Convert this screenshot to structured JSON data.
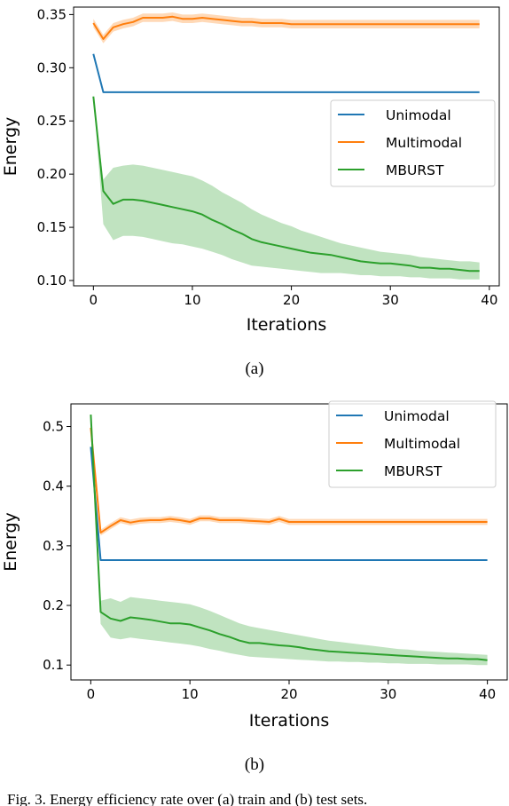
{
  "figure": {
    "caption": "Fig. 3.  Energy efficiency rate over (a) train and (b) test sets."
  },
  "chart_data": [
    {
      "type": "line",
      "subcaption": "(a)",
      "xlabel": "Iterations",
      "ylabel": "Energy",
      "xlim": [
        -2,
        41
      ],
      "ylim": [
        0.095,
        0.357
      ],
      "xticks": [
        0,
        10,
        20,
        30,
        40
      ],
      "yticks": [
        0.1,
        0.15,
        0.2,
        0.25,
        0.3,
        0.35
      ],
      "ytick_decimals": 2,
      "grid": false,
      "legend_position": "center-right",
      "series": [
        {
          "name": "Unimodal",
          "color": "#1f77b4",
          "x": [
            0,
            1,
            39
          ],
          "y": [
            0.313,
            0.277,
            0.277
          ]
        },
        {
          "name": "Multimodal",
          "color": "#ff7f0e",
          "x": [
            0,
            1,
            2,
            3,
            4,
            5,
            6,
            7,
            8,
            9,
            10,
            11,
            12,
            13,
            14,
            15,
            16,
            17,
            18,
            19,
            20,
            21,
            22,
            23,
            24,
            25,
            26,
            27,
            28,
            29,
            30,
            31,
            32,
            33,
            34,
            35,
            36,
            37,
            38,
            39
          ],
          "y": [
            0.342,
            0.327,
            0.338,
            0.341,
            0.343,
            0.347,
            0.347,
            0.347,
            0.348,
            0.346,
            0.346,
            0.347,
            0.346,
            0.345,
            0.344,
            0.343,
            0.343,
            0.342,
            0.342,
            0.342,
            0.341,
            0.341,
            0.341,
            0.341,
            0.341,
            0.341,
            0.341,
            0.341,
            0.341,
            0.341,
            0.341,
            0.341,
            0.341,
            0.341,
            0.341,
            0.341,
            0.341,
            0.341,
            0.341,
            0.341
          ],
          "band": [
            0.004,
            0.004,
            0.004,
            0.004,
            0.004,
            0.004,
            0.004,
            0.004,
            0.004,
            0.004,
            0.004,
            0.004,
            0.004,
            0.004,
            0.004,
            0.004,
            0.004,
            0.004,
            0.004,
            0.004,
            0.004,
            0.004,
            0.004,
            0.004,
            0.004,
            0.004,
            0.004,
            0.004,
            0.004,
            0.004,
            0.004,
            0.004,
            0.004,
            0.004,
            0.004,
            0.004,
            0.004,
            0.004,
            0.004,
            0.004
          ]
        },
        {
          "name": "MBURST",
          "color": "#2ca02c",
          "x": [
            0,
            1,
            2,
            3,
            4,
            5,
            6,
            7,
            8,
            9,
            10,
            11,
            12,
            13,
            14,
            15,
            16,
            17,
            18,
            19,
            20,
            21,
            22,
            23,
            24,
            25,
            26,
            27,
            28,
            29,
            30,
            31,
            32,
            33,
            34,
            35,
            36,
            37,
            38,
            39
          ],
          "y": [
            0.273,
            0.184,
            0.172,
            0.176,
            0.176,
            0.175,
            0.173,
            0.171,
            0.169,
            0.167,
            0.165,
            0.162,
            0.157,
            0.153,
            0.148,
            0.144,
            0.139,
            0.136,
            0.134,
            0.132,
            0.13,
            0.128,
            0.126,
            0.125,
            0.124,
            0.122,
            0.12,
            0.118,
            0.117,
            0.116,
            0.116,
            0.115,
            0.114,
            0.112,
            0.112,
            0.111,
            0.111,
            0.11,
            0.109,
            0.109
          ],
          "lower": [
            0.273,
            0.153,
            0.138,
            0.142,
            0.142,
            0.141,
            0.139,
            0.137,
            0.135,
            0.134,
            0.132,
            0.13,
            0.127,
            0.124,
            0.12,
            0.117,
            0.114,
            0.113,
            0.112,
            0.111,
            0.11,
            0.109,
            0.108,
            0.107,
            0.107,
            0.107,
            0.106,
            0.105,
            0.105,
            0.104,
            0.104,
            0.104,
            0.103,
            0.103,
            0.102,
            0.102,
            0.102,
            0.101,
            0.101,
            0.101
          ],
          "upper": [
            0.273,
            0.195,
            0.206,
            0.208,
            0.209,
            0.208,
            0.206,
            0.204,
            0.202,
            0.2,
            0.198,
            0.194,
            0.189,
            0.183,
            0.178,
            0.173,
            0.167,
            0.162,
            0.158,
            0.154,
            0.151,
            0.147,
            0.144,
            0.141,
            0.138,
            0.135,
            0.133,
            0.131,
            0.129,
            0.127,
            0.126,
            0.125,
            0.124,
            0.122,
            0.121,
            0.12,
            0.119,
            0.118,
            0.118,
            0.117
          ]
        }
      ]
    },
    {
      "type": "line",
      "subcaption": "(b)",
      "xlabel": "Iterations",
      "ylabel": "Energy",
      "xlim": [
        -2,
        42
      ],
      "ylim": [
        0.075,
        0.538
      ],
      "xticks": [
        0,
        10,
        20,
        30,
        40
      ],
      "yticks": [
        0.1,
        0.2,
        0.3,
        0.4,
        0.5
      ],
      "ytick_decimals": 1,
      "grid": false,
      "legend_position": "upper-right",
      "series": [
        {
          "name": "Unimodal",
          "color": "#1f77b4",
          "x": [
            0,
            1,
            40
          ],
          "y": [
            0.466,
            0.276,
            0.276
          ]
        },
        {
          "name": "Multimodal",
          "color": "#ff7f0e",
          "x": [
            0,
            1,
            2,
            3,
            4,
            5,
            6,
            7,
            8,
            9,
            10,
            11,
            12,
            13,
            14,
            15,
            16,
            17,
            18,
            19,
            20,
            21,
            22,
            23,
            24,
            25,
            26,
            27,
            28,
            29,
            30,
            31,
            32,
            33,
            34,
            35,
            36,
            37,
            38,
            39,
            40
          ],
          "y": [
            0.498,
            0.322,
            0.333,
            0.343,
            0.339,
            0.342,
            0.343,
            0.343,
            0.345,
            0.343,
            0.34,
            0.346,
            0.346,
            0.343,
            0.343,
            0.343,
            0.342,
            0.341,
            0.34,
            0.345,
            0.34,
            0.34,
            0.34,
            0.34,
            0.34,
            0.34,
            0.34,
            0.34,
            0.34,
            0.34,
            0.34,
            0.34,
            0.34,
            0.34,
            0.34,
            0.34,
            0.34,
            0.34,
            0.34,
            0.34,
            0.34
          ],
          "band": [
            0.004,
            0.005,
            0.005,
            0.005,
            0.005,
            0.005,
            0.005,
            0.005,
            0.005,
            0.005,
            0.005,
            0.005,
            0.005,
            0.005,
            0.005,
            0.005,
            0.005,
            0.005,
            0.005,
            0.005,
            0.005,
            0.005,
            0.005,
            0.005,
            0.005,
            0.005,
            0.005,
            0.005,
            0.005,
            0.005,
            0.005,
            0.005,
            0.005,
            0.005,
            0.005,
            0.005,
            0.005,
            0.005,
            0.005,
            0.005,
            0.005
          ]
        },
        {
          "name": "MBURST",
          "color": "#2ca02c",
          "x": [
            0,
            1,
            2,
            3,
            4,
            5,
            6,
            7,
            8,
            9,
            10,
            11,
            12,
            13,
            14,
            15,
            16,
            17,
            18,
            19,
            20,
            21,
            22,
            23,
            24,
            25,
            26,
            27,
            28,
            29,
            30,
            31,
            32,
            33,
            34,
            35,
            36,
            37,
            38,
            39,
            40
          ],
          "y": [
            0.52,
            0.189,
            0.178,
            0.174,
            0.18,
            0.178,
            0.176,
            0.173,
            0.17,
            0.17,
            0.168,
            0.163,
            0.158,
            0.152,
            0.147,
            0.141,
            0.137,
            0.137,
            0.135,
            0.133,
            0.132,
            0.13,
            0.127,
            0.125,
            0.123,
            0.122,
            0.121,
            0.12,
            0.119,
            0.118,
            0.117,
            0.116,
            0.115,
            0.114,
            0.113,
            0.112,
            0.111,
            0.111,
            0.11,
            0.11,
            0.108
          ],
          "lower": [
            0.52,
            0.169,
            0.146,
            0.143,
            0.146,
            0.144,
            0.142,
            0.14,
            0.138,
            0.136,
            0.134,
            0.131,
            0.127,
            0.124,
            0.12,
            0.117,
            0.114,
            0.113,
            0.112,
            0.111,
            0.11,
            0.109,
            0.108,
            0.107,
            0.106,
            0.106,
            0.105,
            0.105,
            0.104,
            0.104,
            0.103,
            0.103,
            0.102,
            0.102,
            0.102,
            0.101,
            0.101,
            0.101,
            0.101,
            0.1,
            0.1
          ],
          "upper": [
            0.52,
            0.208,
            0.212,
            0.206,
            0.214,
            0.212,
            0.21,
            0.208,
            0.206,
            0.204,
            0.202,
            0.197,
            0.191,
            0.184,
            0.177,
            0.17,
            0.165,
            0.162,
            0.159,
            0.156,
            0.153,
            0.15,
            0.147,
            0.144,
            0.141,
            0.139,
            0.137,
            0.135,
            0.133,
            0.131,
            0.129,
            0.127,
            0.126,
            0.124,
            0.123,
            0.122,
            0.121,
            0.12,
            0.119,
            0.118,
            0.117
          ]
        }
      ]
    }
  ]
}
